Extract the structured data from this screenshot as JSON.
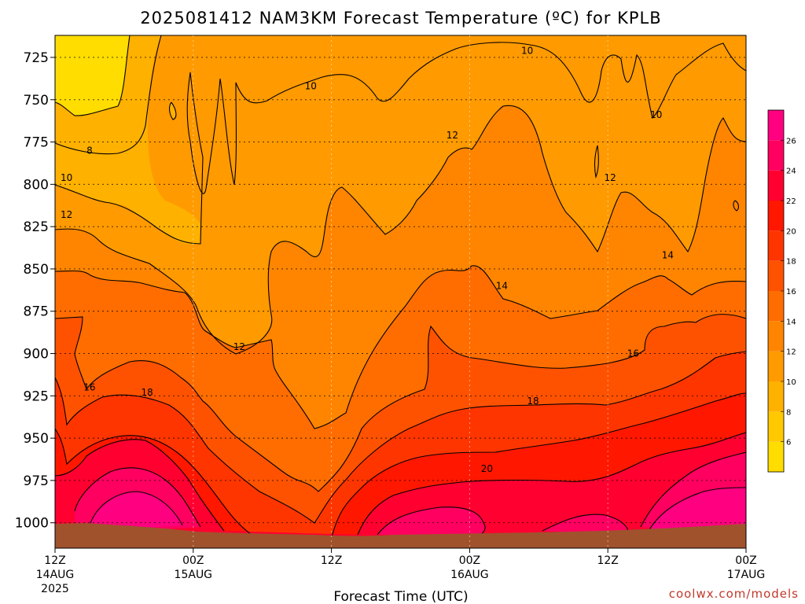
{
  "title": "2025081412 NAM3KM Forecast Temperature (ºC) for KPLB",
  "credit": "coolwx.com/models",
  "chart_data": {
    "type": "heatmap",
    "title": "2025081412 NAM3KM Forecast Temperature (ºC) for KPLB",
    "xlabel": "Forecast Time (UTC)",
    "ylabel": "",
    "y_inverted": true,
    "ylim": [
      1015,
      712
    ],
    "y_ticks": [
      725,
      750,
      775,
      800,
      825,
      850,
      875,
      900,
      925,
      950,
      975,
      1000
    ],
    "x_ticks": [
      {
        "hour": 0,
        "label": "12Z",
        "sub": "14AUG",
        "sub2": "2025"
      },
      {
        "hour": 12,
        "label": "00Z",
        "sub": "15AUG",
        "sub2": ""
      },
      {
        "hour": 24,
        "label": "12Z",
        "sub": "",
        "sub2": ""
      },
      {
        "hour": 36,
        "label": "00Z",
        "sub": "16AUG",
        "sub2": ""
      },
      {
        "hour": 48,
        "label": "12Z",
        "sub": "",
        "sub2": ""
      },
      {
        "hour": 60,
        "label": "00Z",
        "sub": "17AUG",
        "sub2": ""
      }
    ],
    "xlim": [
      0,
      60
    ],
    "grid": true,
    "colorbar": {
      "levels": [
        4,
        6,
        8,
        10,
        12,
        14,
        16,
        18,
        20,
        22,
        24,
        26,
        28
      ],
      "tick_labels": [
        6,
        8,
        10,
        12,
        14,
        16,
        18,
        20,
        22,
        24,
        26
      ],
      "colors": [
        "#ffdd00",
        "#ffc800",
        "#ffb100",
        "#ff9a00",
        "#ff8500",
        "#ff6d00",
        "#ff5200",
        "#ff3500",
        "#ff1700",
        "#ff0030",
        "#ff0060",
        "#ff0080"
      ]
    },
    "contour_labels": [
      {
        "value": 8,
        "hour": 3.0,
        "p": 780
      },
      {
        "value": 10,
        "hour": 1.0,
        "p": 796
      },
      {
        "value": 10,
        "hour": 22.2,
        "p": 742
      },
      {
        "value": 10,
        "hour": 41.0,
        "p": 721
      },
      {
        "value": 10,
        "hour": 52.2,
        "p": 759
      },
      {
        "value": 12,
        "hour": 1.0,
        "p": 818
      },
      {
        "value": 12,
        "hour": 16.0,
        "p": 896
      },
      {
        "value": 12,
        "hour": 34.5,
        "p": 771
      },
      {
        "value": 12,
        "hour": 48.2,
        "p": 796
      },
      {
        "value": 14,
        "hour": 38.8,
        "p": 860
      },
      {
        "value": 14,
        "hour": 53.2,
        "p": 842
      },
      {
        "value": 16,
        "hour": 3.0,
        "p": 920
      },
      {
        "value": 16,
        "hour": 50.2,
        "p": 900
      },
      {
        "value": 18,
        "hour": 8.0,
        "p": 923
      },
      {
        "value": 18,
        "hour": 41.5,
        "p": 928
      },
      {
        "value": 20,
        "hour": 37.5,
        "p": 968
      }
    ],
    "ground": {
      "color": "#a0522d",
      "label": ""
    }
  }
}
